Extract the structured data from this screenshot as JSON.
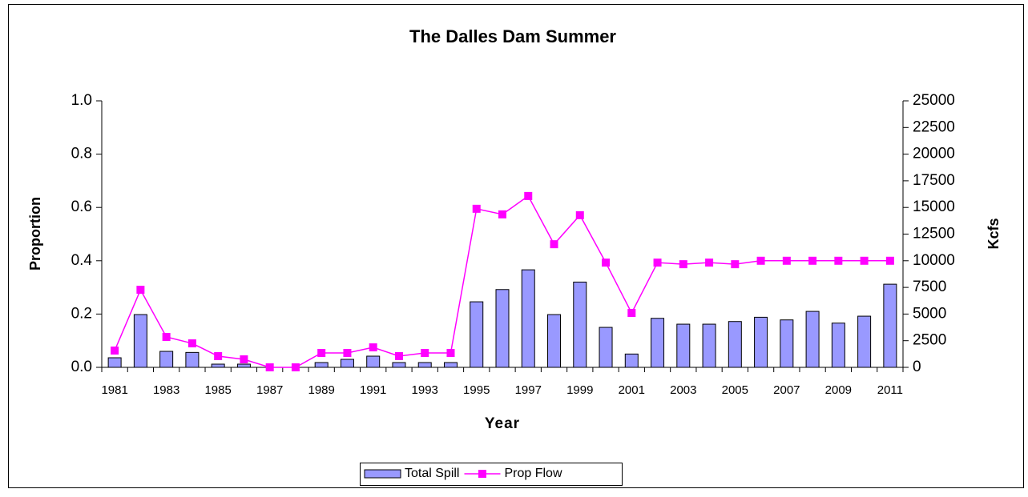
{
  "chart_data": {
    "type": "bar-line",
    "title": "The Dalles Dam Summer",
    "xlabel": "Year",
    "ylabel": "Proportion",
    "y2label": "Kcfs",
    "categories": [
      "1981",
      null,
      "1983",
      null,
      "1985",
      null,
      "1987",
      null,
      "1989",
      null,
      "1991",
      null,
      "1993",
      null,
      "1995",
      null,
      "1997",
      null,
      "1999",
      null,
      "2001",
      null,
      "2003",
      null,
      "2005",
      null,
      "2007",
      null,
      "2009",
      null,
      "2011"
    ],
    "series": [
      {
        "name": "Total Spill",
        "type": "bar",
        "axis": "y2",
        "color": "#9999ff",
        "values": [
          900,
          4950,
          1500,
          1400,
          300,
          300,
          0,
          0,
          450,
          750,
          1050,
          450,
          450,
          450,
          6150,
          7300,
          9150,
          4950,
          8000,
          3750,
          1250,
          4600,
          4050,
          4050,
          4300,
          4700,
          4450,
          5250,
          4150,
          4800,
          7800
        ]
      },
      {
        "name": "Prop Flow",
        "type": "line",
        "axis": "y",
        "color": "#ff00ff",
        "values": [
          0.063,
          0.291,
          0.114,
          0.09,
          0.042,
          0.03,
          0,
          0,
          0.054,
          0.054,
          0.075,
          0.042,
          0.054,
          0.054,
          0.595,
          0.574,
          0.643,
          0.462,
          0.571,
          0.393,
          0.204,
          0.393,
          0.387,
          0.393,
          0.387,
          0.4,
          0.4,
          0.4,
          0.4,
          0.4,
          0.4
        ]
      }
    ],
    "ylim": [
      0,
      1
    ],
    "yticks": [
      {
        "value": 0,
        "label": "0.0"
      },
      0.2,
      0.4,
      0.6,
      0.8,
      {
        "value": 1,
        "label": "1.0"
      }
    ],
    "y2lim": [
      0,
      25000
    ],
    "y2ticks": [
      0,
      2500,
      5000,
      7500,
      10000,
      12500,
      15000,
      17500,
      20000,
      22500,
      25000
    ],
    "grid": false,
    "legend": "bottom"
  }
}
